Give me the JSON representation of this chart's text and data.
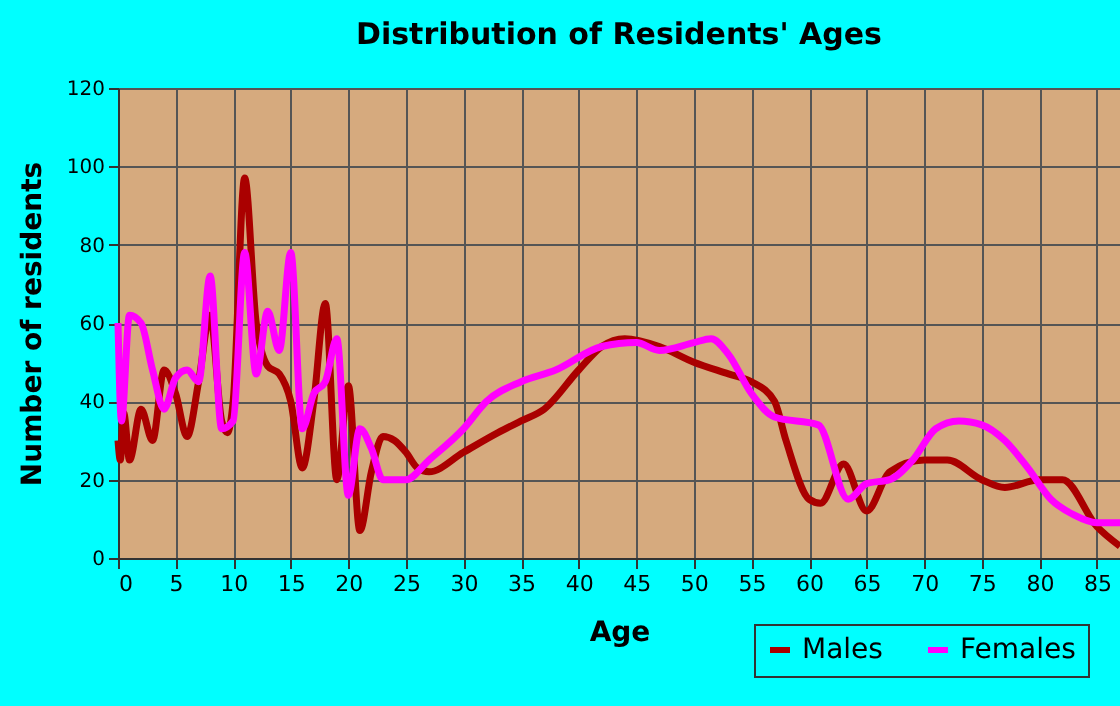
{
  "chart_data": {
    "type": "line",
    "title": "Distribution of Residents' Ages",
    "xlabel": "Age",
    "ylabel": "Number of residents",
    "xlim": [
      0,
      87
    ],
    "xticks": [
      0,
      5,
      10,
      15,
      20,
      25,
      30,
      35,
      40,
      45,
      50,
      55,
      60,
      65,
      70,
      75,
      80,
      85
    ],
    "ylim": [
      0,
      120
    ],
    "yticks": [
      0,
      20,
      40,
      60,
      80,
      100,
      120
    ],
    "grid": true,
    "legend": "bottom right",
    "line_style": "solid",
    "marker": "none",
    "series": [
      {
        "name": "Males",
        "color": "#aa0000",
        "x": [
          0,
          0.2,
          0.5,
          1,
          2,
          3,
          4,
          5,
          6,
          7,
          8,
          9,
          9.5,
          10,
          11,
          12,
          13,
          14,
          15,
          16,
          17,
          18,
          19,
          20,
          21,
          22,
          23,
          24,
          25,
          26,
          27,
          30,
          33,
          35,
          37,
          40,
          42,
          44,
          47,
          50,
          53,
          55,
          57,
          58,
          60,
          61,
          63,
          65,
          67,
          70,
          72,
          75,
          77,
          80,
          82,
          85,
          87
        ],
        "values": [
          30,
          25,
          37,
          25,
          38,
          30,
          48,
          42,
          31,
          45,
          62,
          35,
          32,
          40,
          97,
          60,
          49,
          47,
          40,
          23,
          40,
          65,
          20,
          44,
          7,
          22,
          31,
          30,
          27,
          23,
          22,
          27,
          32,
          35,
          38,
          48,
          54,
          56,
          54,
          50,
          47,
          45,
          40,
          30,
          15,
          14,
          24,
          12,
          22,
          25,
          25,
          20,
          18,
          20,
          20,
          8,
          3
        ]
      },
      {
        "name": "Females",
        "color": "#ff00ff",
        "x": [
          0,
          0.3,
          1,
          2,
          3,
          4,
          5,
          6,
          7,
          8,
          9,
          10,
          11,
          12,
          13,
          14,
          15,
          16,
          17,
          18,
          19,
          20,
          21,
          22,
          23,
          25,
          27,
          30,
          32,
          35,
          38,
          42,
          45,
          47,
          50,
          51.5,
          53,
          55,
          57,
          60.8,
          63.4,
          65,
          67,
          69,
          71,
          73,
          75,
          77,
          79,
          81,
          83,
          85,
          87
        ],
        "values": [
          60,
          35,
          62,
          60,
          48,
          38,
          46,
          48,
          45,
          72,
          33,
          35,
          78,
          47,
          63,
          53,
          78,
          33,
          42,
          45,
          56,
          16,
          33,
          28,
          20,
          20,
          25,
          33,
          40,
          45,
          48,
          54,
          55,
          53,
          55,
          56,
          52,
          42,
          36,
          34,
          15,
          19,
          20,
          25,
          33,
          35,
          34,
          30,
          23,
          15,
          11,
          9,
          9
        ]
      }
    ]
  }
}
